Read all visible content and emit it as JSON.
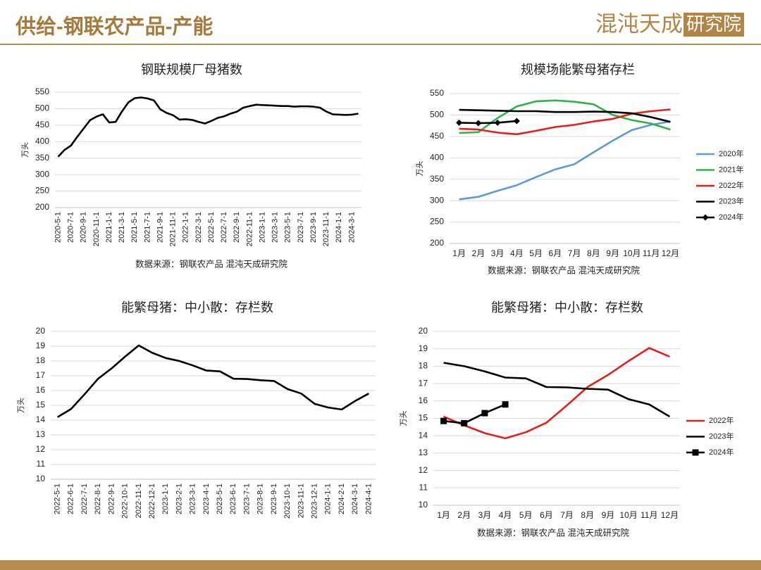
{
  "header": {
    "title": "供给-钢联农产品-产能",
    "logo_main": "混沌天成",
    "logo_box": "研究院"
  },
  "chart_data": [
    {
      "type": "line",
      "title": "钢联规模厂母猪数",
      "y_label": "万头",
      "source": "数据来源：钢联农产品 混沌天成研究院",
      "categories": [
        "2020-5-1",
        null,
        "2020-7-1",
        null,
        "2020-9-1",
        null,
        "2020-11-1",
        null,
        "2021-1-1",
        null,
        "2021-3-1",
        null,
        "2021-5-1",
        null,
        "2021-7-1",
        null,
        "2021-9-1",
        null,
        "2021-11-1",
        null,
        "2022-1-1",
        null,
        "2022-3-1",
        null,
        "2022-5-1",
        null,
        "2022-7-1",
        null,
        "2022-9-1",
        null,
        "2022-11-1",
        null,
        "2023-1-1",
        null,
        "2023-3-1",
        null,
        "2023-5-1",
        null,
        "2023-7-1",
        null,
        "2023-9-1",
        null,
        "2023-11-1",
        null,
        "2024-1-1",
        null,
        "2024-3-1",
        null
      ],
      "values": [
        354,
        375,
        388,
        415,
        440,
        465,
        476,
        483,
        458,
        460,
        492,
        519,
        532,
        534,
        531,
        525,
        498,
        487,
        480,
        467,
        468,
        466,
        460,
        455,
        463,
        472,
        477,
        485,
        491,
        503,
        508,
        512,
        511,
        510,
        509,
        508,
        508,
        506,
        507,
        507,
        506,
        503,
        491,
        483,
        482,
        481,
        482,
        485
      ],
      "color": "#000000",
      "ylim": [
        200,
        550
      ],
      "yticks": [
        200,
        250,
        300,
        350,
        400,
        450,
        500,
        550
      ],
      "grid": true
    },
    {
      "type": "line",
      "title": "规模场能繁母猪存栏",
      "y_label": "万头",
      "source": "数据来源：钢联农产品 混沌天成研究院",
      "legend": "right",
      "categories": [
        "1月",
        "2月",
        "3月",
        "4月",
        "5月",
        "6月",
        "7月",
        "8月",
        "9月",
        "10月",
        "11月",
        "12月"
      ],
      "series": [
        {
          "name": "2020年",
          "color": "#5b9bd5",
          "values": [
            303,
            309,
            323,
            336,
            355,
            373,
            385,
            413,
            440,
            465,
            477,
            485
          ]
        },
        {
          "name": "2021年",
          "color": "#2eb34a",
          "values": [
            458,
            460,
            493,
            520,
            532,
            534,
            531,
            525,
            500,
            488,
            480,
            466
          ]
        },
        {
          "name": "2022年",
          "color": "#e3201b",
          "values": [
            468,
            466,
            459,
            455,
            463,
            472,
            477,
            485,
            491,
            503,
            509,
            513
          ]
        },
        {
          "name": "2023年",
          "color": "#000000",
          "values": [
            512,
            511,
            510,
            509,
            509,
            507,
            507,
            508,
            507,
            504,
            495,
            484
          ]
        },
        {
          "name": "2024年",
          "color": "#000000",
          "marker": "diamond",
          "values": [
            482,
            481,
            482,
            486,
            null,
            null,
            null,
            null,
            null,
            null,
            null,
            null
          ]
        }
      ],
      "ylim": [
        200,
        550
      ],
      "yticks": [
        200,
        250,
        300,
        350,
        400,
        450,
        500,
        550
      ],
      "grid": true
    },
    {
      "type": "line",
      "title": "能繁母猪：中小散：存栏数",
      "y_label": "万头",
      "categories": [
        "2022-5-1",
        "2022-6-1",
        "2022-7-1",
        "2022-8-1",
        "2022-9-1",
        "2022-10-1",
        "2022-11-1",
        "2022-12-1",
        "2023-1-1",
        "2023-2-1",
        "2023-3-1",
        "2023-4-1",
        "2023-5-1",
        "2023-6-1",
        "2023-7-1",
        "2023-8-1",
        "2023-9-1",
        "2023-10-1",
        "2023-11-1",
        "2023-12-1",
        "2024-1-1",
        "2024-2-1",
        "2024-3-1",
        "2024-4-1"
      ],
      "values": [
        14.2,
        14.75,
        15.75,
        16.8,
        17.5,
        18.3,
        19.05,
        18.55,
        18.2,
        18.0,
        17.7,
        17.35,
        17.3,
        16.8,
        16.78,
        16.7,
        16.65,
        16.1,
        15.8,
        15.1,
        14.85,
        14.72,
        15.3,
        15.8
      ],
      "color": "#000000",
      "ylim": [
        10,
        20
      ],
      "yticks": [
        10,
        11,
        12,
        13,
        14,
        15,
        16,
        17,
        18,
        19,
        20
      ],
      "grid": true
    },
    {
      "type": "line",
      "title": "能繁母猪：中小散：存栏数",
      "y_label": "万头",
      "source": "数据来源：钢联农产品 混沌天成研究院",
      "legend": "right",
      "categories": [
        "1月",
        "2月",
        "3月",
        "4月",
        "5月",
        "6月",
        "7月",
        "8月",
        "9月",
        "10月",
        "11月",
        "12月"
      ],
      "series": [
        {
          "name": "2022年",
          "color": "#e3201b",
          "values": [
            15.1,
            14.6,
            14.15,
            13.85,
            14.2,
            14.75,
            15.75,
            16.8,
            17.5,
            18.3,
            19.05,
            18.55
          ]
        },
        {
          "name": "2023年",
          "color": "#000000",
          "values": [
            18.2,
            18.0,
            17.7,
            17.35,
            17.3,
            16.8,
            16.78,
            16.7,
            16.65,
            16.1,
            15.8,
            15.1
          ]
        },
        {
          "name": "2024年",
          "color": "#000000",
          "marker": "square",
          "values": [
            14.85,
            14.72,
            15.3,
            15.8,
            null,
            null,
            null,
            null,
            null,
            null,
            null,
            null
          ]
        }
      ],
      "ylim": [
        10,
        20
      ],
      "yticks": [
        10,
        11,
        12,
        13,
        14,
        15,
        16,
        17,
        18,
        19,
        20
      ],
      "grid": true
    }
  ]
}
